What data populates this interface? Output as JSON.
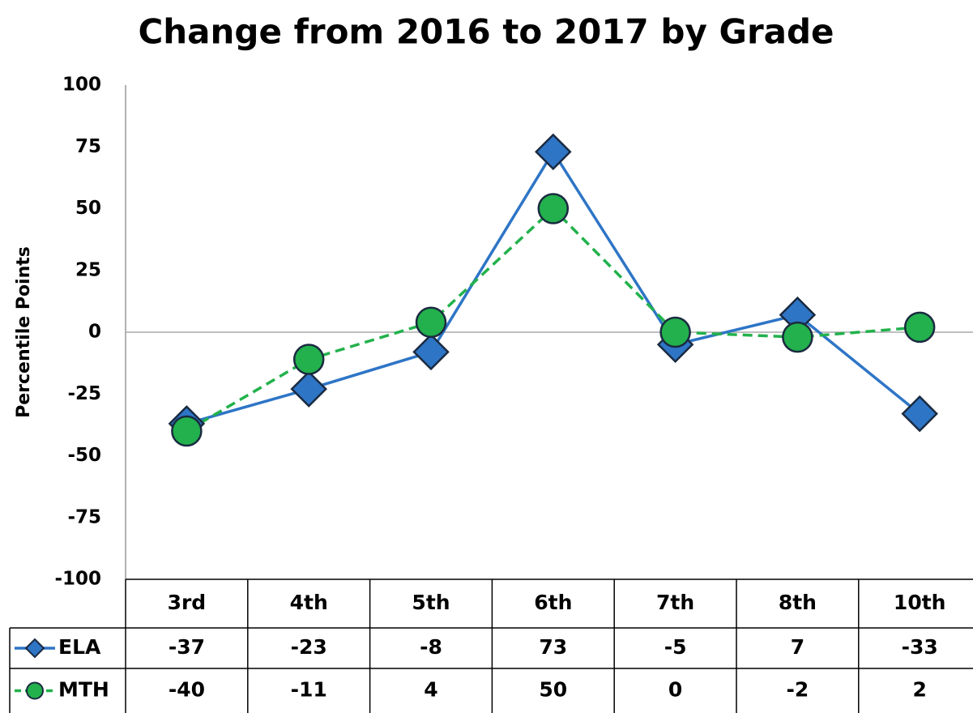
{
  "chart_data": {
    "type": "line",
    "title": "Change from 2016 to 2017 by Grade",
    "y_label": "Percentile Points",
    "categories": [
      "3rd",
      "4th",
      "5th",
      "6th",
      "7th",
      "8th",
      "10th"
    ],
    "series": [
      {
        "name": "ELA",
        "color": "#2e75c6",
        "marker": "diamond",
        "dashed": false,
        "values": [
          -37,
          -23,
          -8,
          73,
          -5,
          7,
          -33
        ]
      },
      {
        "name": "MTH",
        "color": "#22b14c",
        "marker": "circle",
        "dashed": true,
        "values": [
          -40,
          -11,
          4,
          50,
          0,
          -2,
          2
        ]
      }
    ],
    "ylim": [
      -100,
      100
    ],
    "yticks": [
      -100,
      -75,
      -50,
      -25,
      0,
      25,
      50,
      75,
      100
    ],
    "grid": false
  }
}
